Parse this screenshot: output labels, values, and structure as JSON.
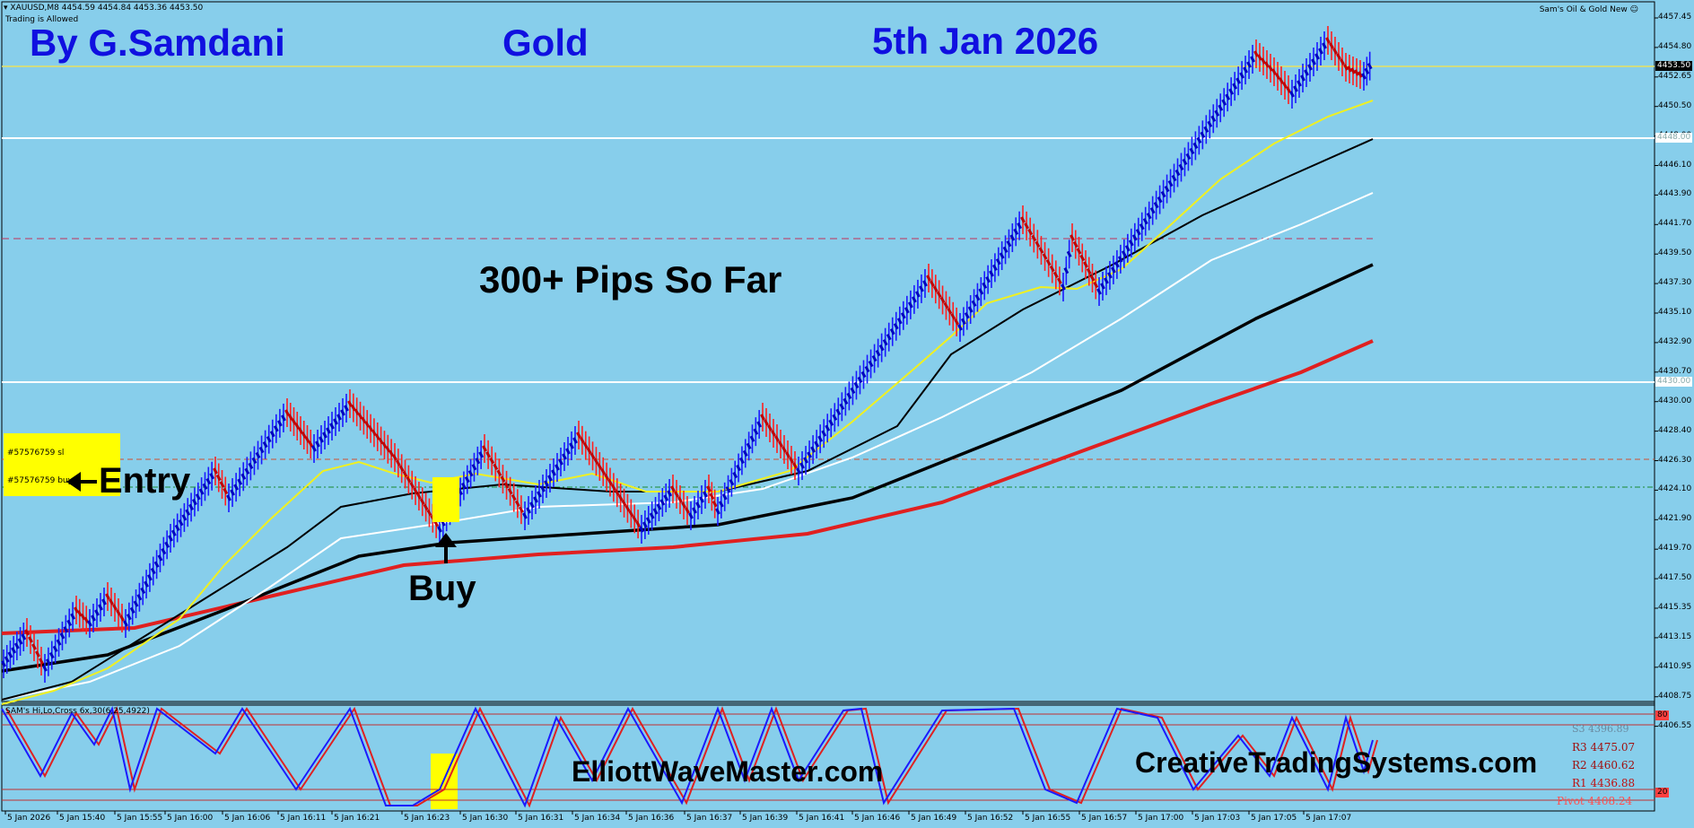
{
  "chart_info": {
    "symbol_line": "XAUUSD,M8  4454.59 4454.84 4453.36 4453.50",
    "trading_status": "Trading is Allowed",
    "indicator_name": "Sam's Oil & Gold New"
  },
  "overlay": {
    "author": "By G.Samdani",
    "instrument": "Gold",
    "date": "5th Jan 2026",
    "headline": "300+ Pips So Far",
    "entry_label": "Entry",
    "buy_label": "Buy",
    "site_one": "ElliottWaveMaster.com",
    "site_two": "CreativeTradingSystems.com"
  },
  "orders": {
    "sl_label": "#57576759 sl",
    "buy_label": "#57576759 buy"
  },
  "oscillator": {
    "title": "SAM's Hi,Lo,Cross 6x,30(6,25,4922)",
    "level_80": "80",
    "level_20": "20",
    "r3": "R3  4475.07",
    "r2": "R2  4460.62",
    "r1": "R1  4436.88",
    "pivot": "Pivot  4408.24",
    "s_label": "S3  4396.89"
  },
  "price_axis": {
    "labels": [
      "4457.45",
      "4454.80",
      "4452.65",
      "4450.50",
      "4448.00",
      "4446.10",
      "4443.90",
      "4441.70",
      "4439.50",
      "4437.30",
      "4435.10",
      "4432.90",
      "4430.70",
      "4430.00",
      "4428.40",
      "4426.30",
      "4424.10",
      "4421.90",
      "4419.70",
      "4417.50",
      "4415.35",
      "4413.15",
      "4410.95",
      "4408.75",
      "4406.55"
    ],
    "current_price": "4453.50",
    "white_line_top": "4448.00",
    "white_line_mid": "4430.00"
  },
  "time_axis": {
    "labels": [
      "5 Jan 2026",
      "5 Jan 15:40",
      "5 Jan 15:55",
      "5 Jan 16:00",
      "5 Jan 16:06",
      "5 Jan 16:11",
      "5 Jan 16:21",
      "5 Jan 16:23",
      "5 Jan 16:30",
      "5 Jan 16:31",
      "5 Jan 16:34",
      "5 Jan 16:36",
      "5 Jan 16:37",
      "5 Jan 16:39",
      "5 Jan 16:41",
      "5 Jan 16:46",
      "5 Jan 16:49",
      "5 Jan 16:52",
      "5 Jan 16:55",
      "5 Jan 16:57",
      "5 Jan 17:00",
      "5 Jan 17:03",
      "5 Jan 17:05",
      "5 Jan 17:07"
    ]
  },
  "colors": {
    "background": "#87ceeb",
    "bull_bar": "#1a1aff",
    "bear_bar": "#ff2020",
    "headline_blue": "#1010e0",
    "order_box": "#ffff00"
  }
}
